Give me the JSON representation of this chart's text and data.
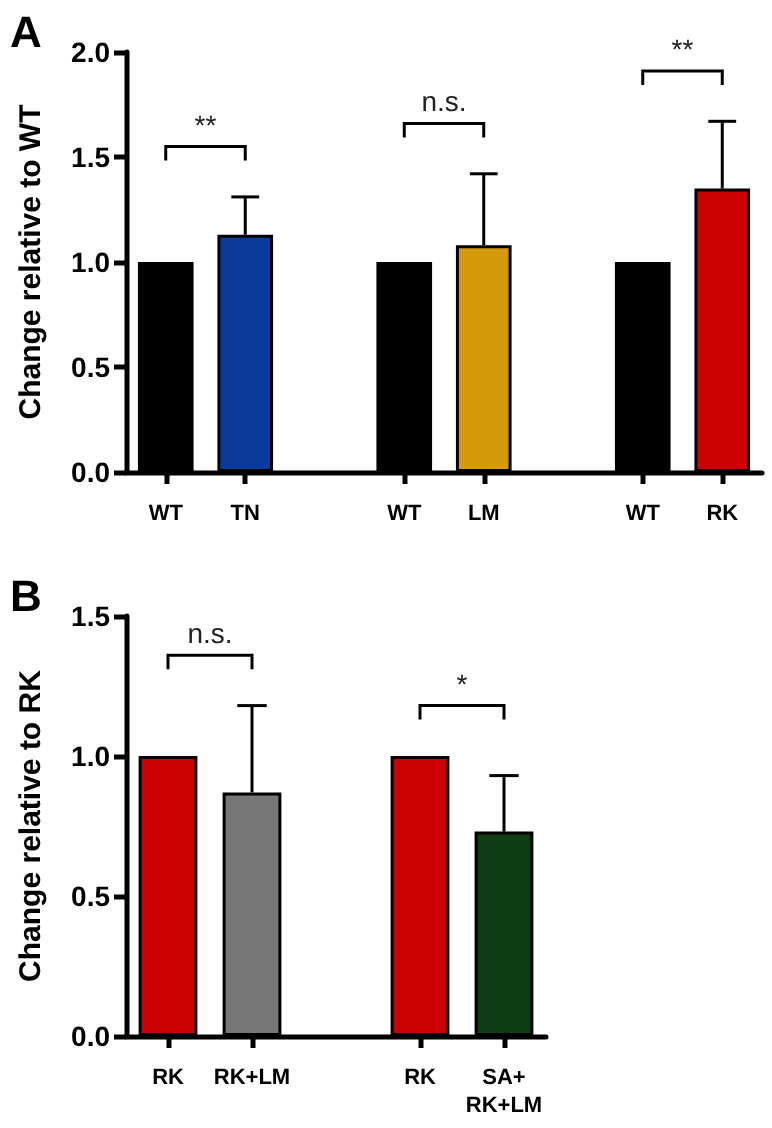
{
  "chart_data": [
    {
      "type": "bar",
      "title": "A",
      "ylabel": "Change relative to WT",
      "categories": [
        "WT",
        "TN",
        null,
        "WT",
        "LM",
        null,
        "WT",
        "RK"
      ],
      "values": [
        1,
        1.13,
        null,
        1,
        1.08,
        null,
        1,
        1.35
      ],
      "colors": [
        "#000000",
        "#0a3a9c",
        null,
        "#000000",
        "#d49a0a",
        null,
        "#000000",
        "#cc0000"
      ],
      "errors": [
        null,
        [
          1.13,
          1.31
        ],
        null,
        null,
        [
          1.08,
          1.42
        ],
        null,
        null,
        [
          1.35,
          1.67
        ]
      ],
      "ylim": [
        0,
        2
      ],
      "yticks": [
        {
          "value": 0,
          "label": "0.0"
        },
        {
          "value": 0.5,
          "label": "0.5"
        },
        {
          "value": 1,
          "label": "1.0"
        },
        {
          "value": 1.5,
          "label": "1.5"
        },
        {
          "value": 2,
          "label": "2.0"
        }
      ],
      "grid": false,
      "annotations": [
        "**",
        "n.s.",
        "**"
      ]
    },
    {
      "type": "bar",
      "title": "B",
      "ylabel": "Change relative to RK",
      "categories": [
        "RK",
        "RK+LM",
        null,
        "RK",
        "SA+\nRK+LM"
      ],
      "values": [
        1,
        0.87,
        null,
        1,
        0.73
      ],
      "colors": [
        "#cc0000",
        "#777777",
        null,
        "#cc0000",
        "#0f3d14"
      ],
      "errors": [
        null,
        [
          0.87,
          1.18
        ],
        null,
        null,
        [
          0.73,
          0.93
        ]
      ],
      "ylim": [
        0,
        1.5
      ],
      "yticks": [
        {
          "value": 0,
          "label": "0.0"
        },
        {
          "value": 0.5,
          "label": "0.5"
        },
        {
          "value": 1,
          "label": "1.0"
        },
        {
          "value": 1.5,
          "label": "1.5"
        }
      ],
      "grid": false,
      "annotations": [
        "n.s.",
        "*"
      ]
    }
  ]
}
